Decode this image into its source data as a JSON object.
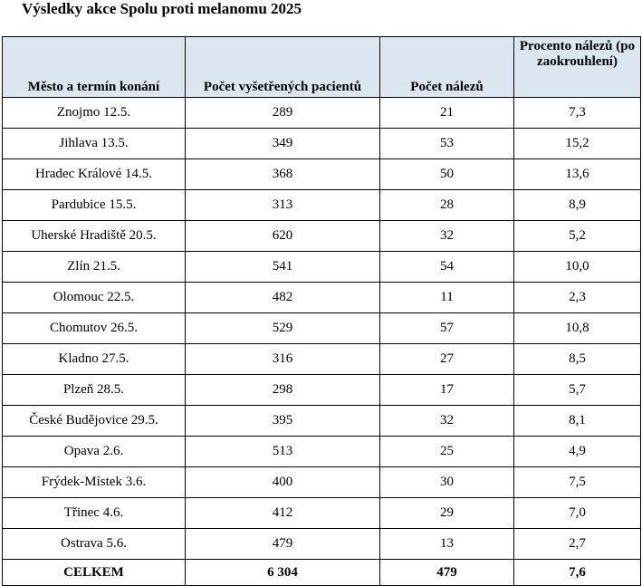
{
  "title": "Výsledky akce Spolu proti melanomu 2025",
  "table": {
    "headers": [
      "Město a termín konání",
      "Počet vyšetřených pacientů",
      "Počet nálezů",
      "Procento nálezů (po zaokrouhlení)"
    ],
    "rows": [
      [
        "Znojmo 12.5.",
        "289",
        "21",
        "7,3"
      ],
      [
        "Jihlava 13.5.",
        "349",
        "53",
        "15,2"
      ],
      [
        "Hradec Králové 14.5.",
        "368",
        "50",
        "13,6"
      ],
      [
        "Pardubice 15.5.",
        "313",
        "28",
        "8,9"
      ],
      [
        "Uherské Hradiště 20.5.",
        "620",
        "32",
        "5,2"
      ],
      [
        "Zlín 21.5.",
        "541",
        "54",
        "10,0"
      ],
      [
        "Olomouc 22.5.",
        "482",
        "11",
        "2,3"
      ],
      [
        "Chomutov 26.5.",
        "529",
        "57",
        "10,8"
      ],
      [
        "Kladno 27.5.",
        "316",
        "27",
        "8,5"
      ],
      [
        "Plzeň 28.5.",
        "298",
        "17",
        "5,7"
      ],
      [
        "České Budějovice 29.5.",
        "395",
        "32",
        "8,1"
      ],
      [
        "Opava 2.6.",
        "513",
        "25",
        "4,9"
      ],
      [
        "Frýdek-Místek 3.6.",
        "400",
        "30",
        "7,5"
      ],
      [
        "Třinec 4.6.",
        "412",
        "29",
        "7,0"
      ],
      [
        "Ostrava 5.6.",
        "479",
        "13",
        "2,7"
      ]
    ],
    "total": [
      "CELKEM",
      "6 304",
      "479",
      "7,6"
    ]
  },
  "colors": {
    "header_background": "#dce6f1",
    "border": "#000000",
    "text": "#000000"
  }
}
